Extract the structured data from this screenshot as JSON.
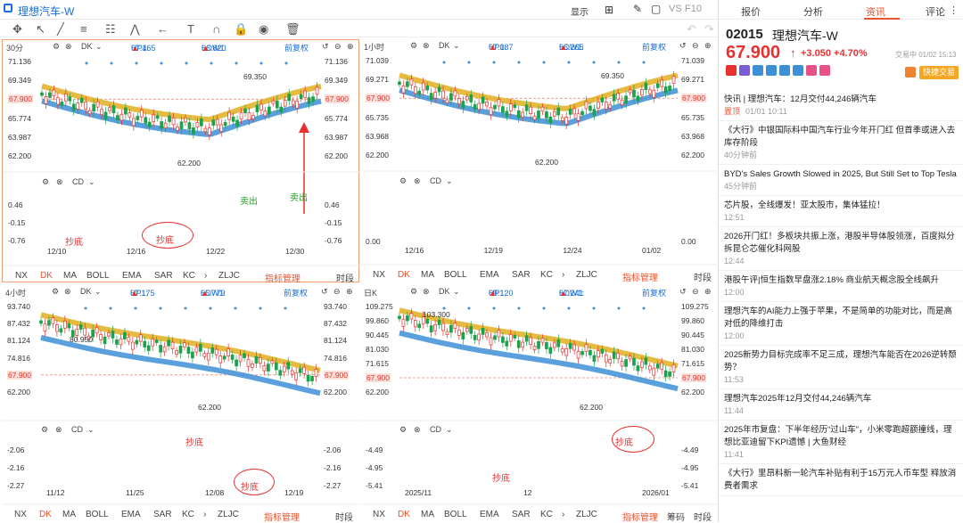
{
  "app": {
    "title": "理想汽车-W"
  },
  "toolbar": {
    "display_label": "显示",
    "vs_label": "VS",
    "f10_label": "F10"
  },
  "sidebar": {
    "tabs": [
      "报价",
      "分析",
      "资讯",
      "评论"
    ],
    "stock_code": "02015",
    "stock_name": "理想汽车-W",
    "price": "67.900",
    "change": "+3.050",
    "change_pct": "+4.70%",
    "trade_time": "交易中 01/02 15:13",
    "quick_trade": "快捷交易",
    "news": [
      {
        "title": "快讯 | 理想汽车：12月交付44,246辆汽车",
        "tag": "置顶",
        "time": "01/01 10:11"
      },
      {
        "title": "《大行》中银国际料中国汽车行业今年开门红 但首季或进入去库存阶段",
        "time": "40分钟前"
      },
      {
        "title": "BYD's Sales Growth Slowed in 2025, But Still Set to Top Tesla",
        "time": "45分钟前"
      },
      {
        "title": "芯片股，全线爆发！亚太股市，集体猛拉！",
        "time": "12:51"
      },
      {
        "title": "2026开门红！多板块共振上涨，港股半导体股领涨，百度拟分拆昆仑芯催化科网股",
        "time": "12:44"
      },
      {
        "title": "港股午评|恒生指数早盘涨2.18% 商业航天概念股全线飙升",
        "time": "12:00"
      },
      {
        "title": "理想汽车的AI能力上强于苹果，不是简单的功能对比，而是高对低的降维打击",
        "time": "12:00"
      },
      {
        "title": "2025新势力目标完成率不足三成，理想汽车能否在2026逆转颓势？",
        "time": "11:53"
      },
      {
        "title": "理想汽车2025年12月交付44,246辆汽车",
        "time": "11:44"
      },
      {
        "title": "2025年市复盘：下半年经历“过山车”，小米零跑超额撞线，理想比亚迪留下KPI遗憾 | 大鱼财经",
        "time": "11:41"
      },
      {
        "title": "《大行》里昂料新一轮汽车补贴有利于15万元人币车型 释放消费者需求",
        "time": ""
      }
    ]
  },
  "panels": [
    {
      "period": "30分",
      "indicator": "DK",
      "up1_label": "UP1:",
      "up1": "67.465",
      "low1_label": "LOW1:",
      "low1": "66.820",
      "adjust": "前复权",
      "yticks": [
        "71.136",
        "69.349",
        "67.900",
        "65.774",
        "63.987",
        "62.200"
      ],
      "sub_label": "CD",
      "sub_yticks": [
        "0.46",
        "-0.15",
        "-0.76"
      ],
      "xticks": [
        "12/10",
        "12/16",
        "12/22",
        "12/30"
      ],
      "hi_label": "69.350",
      "lo_label": "62.200",
      "annotations": [
        "抄底",
        "抄底",
        "卖出",
        "卖出"
      ]
    },
    {
      "period": "1小时",
      "indicator": "DK",
      "up1_label": "UP1:",
      "up1": "67.087",
      "low1_label": "LOW1:",
      "low1": "66.265",
      "adjust": "前复权",
      "yticks": [
        "71.039",
        "69.271",
        "67.900",
        "65.735",
        "63.968",
        "62.200"
      ],
      "sub_label": "CD",
      "sub_yticks": [
        "0.00"
      ],
      "xticks": [
        "12/16",
        "12/19",
        "12/24",
        "01/02"
      ],
      "hi_label": "69.350",
      "lo_label": "62.200",
      "annotations": []
    },
    {
      "period": "4小时",
      "indicator": "DK",
      "up1_label": "UP1:",
      "up1": "67.175",
      "low1_label": "LOW1:",
      "low1": "65.779",
      "adjust": "前复权",
      "yticks": [
        "93.740",
        "87.432",
        "81.124",
        "74.816",
        "67.900",
        "62.200"
      ],
      "sub_label": "CD",
      "sub_yticks": [
        "-2.06",
        "-2.16",
        "-2.27"
      ],
      "xticks": [
        "11/12",
        "11/25",
        "12/08",
        "12/19"
      ],
      "hi_label": "80.950",
      "lo_label": "62.200",
      "annotations": [
        "抄底",
        "抄底"
      ]
    },
    {
      "period": "日K",
      "indicator": "DK",
      "up1_label": "UP1:",
      "up1": "69.120",
      "low1_label": "LOW1:",
      "low1": "67.241",
      "adjust": "前复权",
      "yticks": [
        "109.275",
        "99.860",
        "90.445",
        "81.030",
        "71.615",
        "67.900",
        "62.200"
      ],
      "sub_label": "CD",
      "sub_yticks": [
        "-4.49",
        "-4.95",
        "-5.41"
      ],
      "xticks": [
        "2025/11",
        "12",
        "2026/01"
      ],
      "hi_label": "103.300",
      "lo_label": "62.200",
      "annotations": [
        "抄底",
        "抄底"
      ]
    }
  ],
  "bottom_tabs": [
    "NX",
    "DK",
    "MA",
    "BOLL",
    "EMA",
    "SAR",
    "KC",
    "ZLJC",
    "指标管理",
    "时段"
  ],
  "bottom_tabs_right4": [
    "时段",
    "筹码"
  ],
  "colors": {
    "up": "#e8302f",
    "down": "#1aa34a",
    "upper_band": "#e0b020",
    "lower_band": "#3d8fd6",
    "accent": "#e8542f"
  }
}
